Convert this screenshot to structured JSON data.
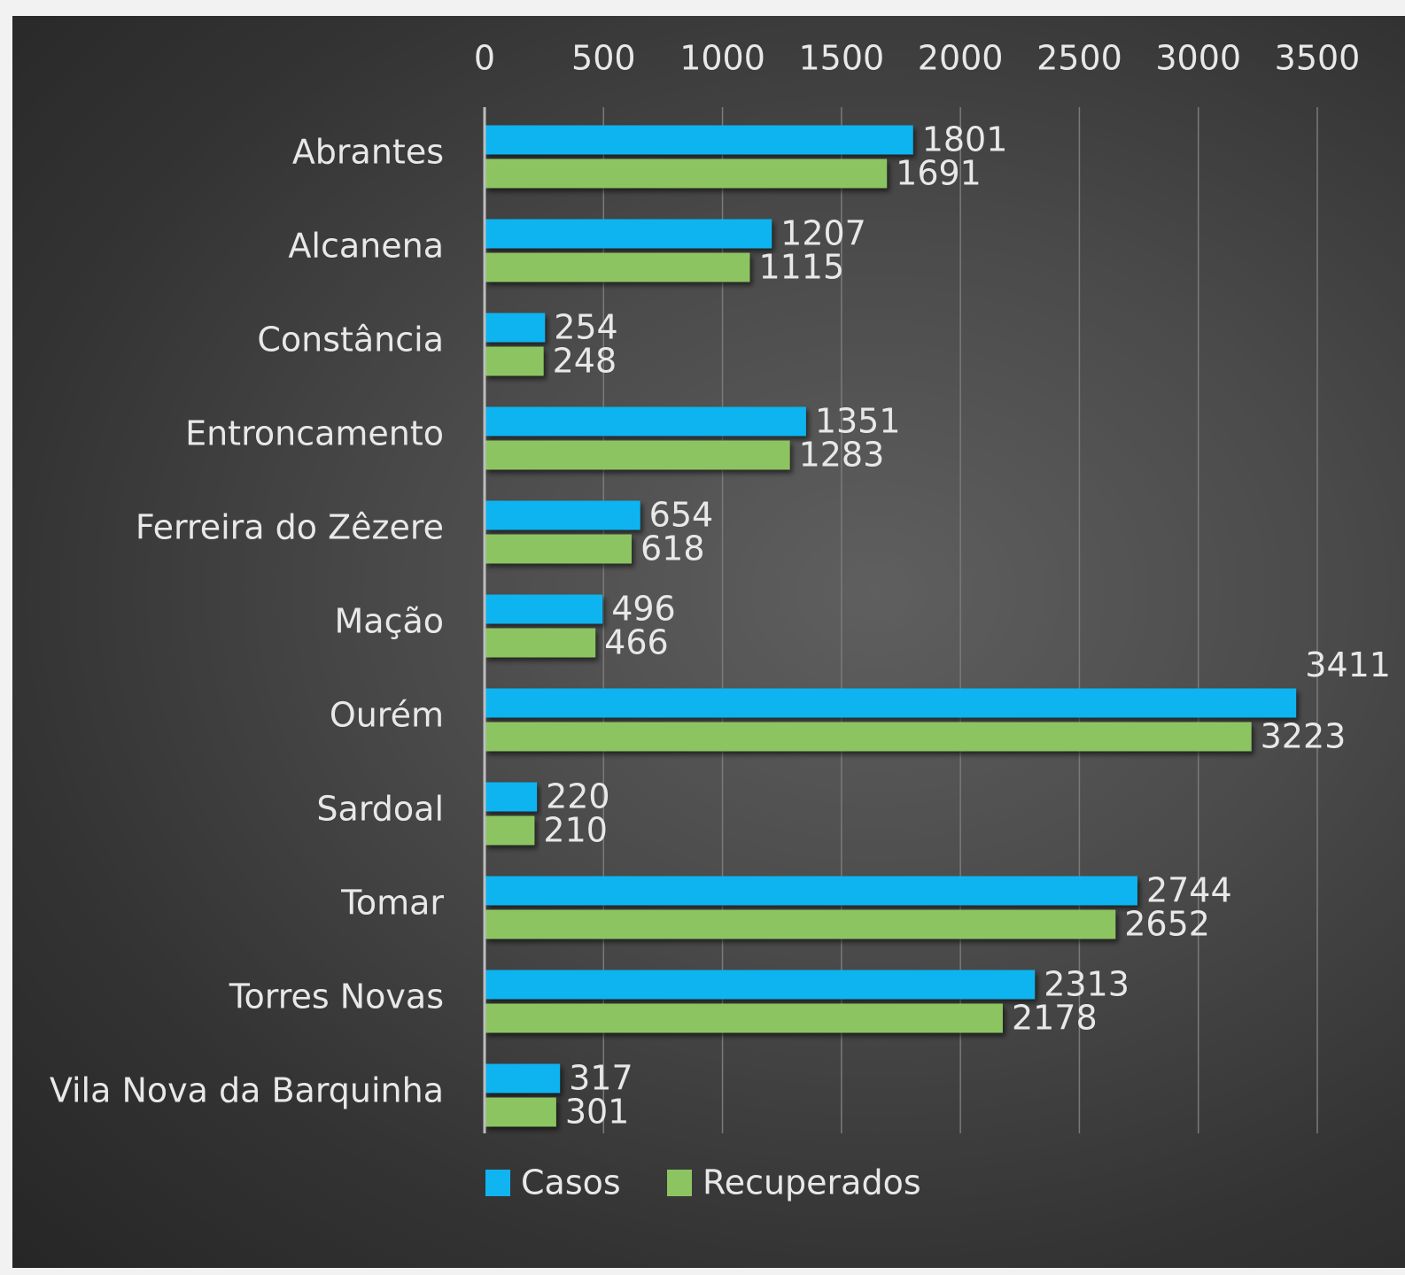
{
  "chart_data": {
    "type": "bar",
    "orientation": "horizontal",
    "categories": [
      "Abrantes",
      "Alcanena",
      "Constância",
      "Entroncamento",
      "Ferreira do Zêzere",
      "Mação",
      "Ourém",
      "Sardoal",
      "Tomar",
      "Torres Novas",
      "Vila Nova da Barquinha"
    ],
    "series": [
      {
        "name": "Casos",
        "color": "#10b4f0",
        "values": [
          1801,
          1207,
          254,
          1351,
          654,
          496,
          3411,
          220,
          2744,
          2313,
          317
        ]
      },
      {
        "name": "Recuperados",
        "color": "#8cc462",
        "values": [
          1691,
          1115,
          248,
          1283,
          618,
          466,
          3223,
          210,
          2652,
          2178,
          301
        ]
      }
    ],
    "xlim": [
      0,
      3500
    ],
    "x_ticks": [
      "0",
      "500",
      "1000",
      "1500",
      "2000",
      "2500",
      "3000",
      "3500"
    ],
    "x_axis_position": "top",
    "grid": true,
    "data_labels": true,
    "legend": {
      "position": "bottom",
      "entries": [
        "Casos",
        "Recuperados"
      ]
    },
    "title": "",
    "xlabel": "",
    "ylabel": ""
  }
}
